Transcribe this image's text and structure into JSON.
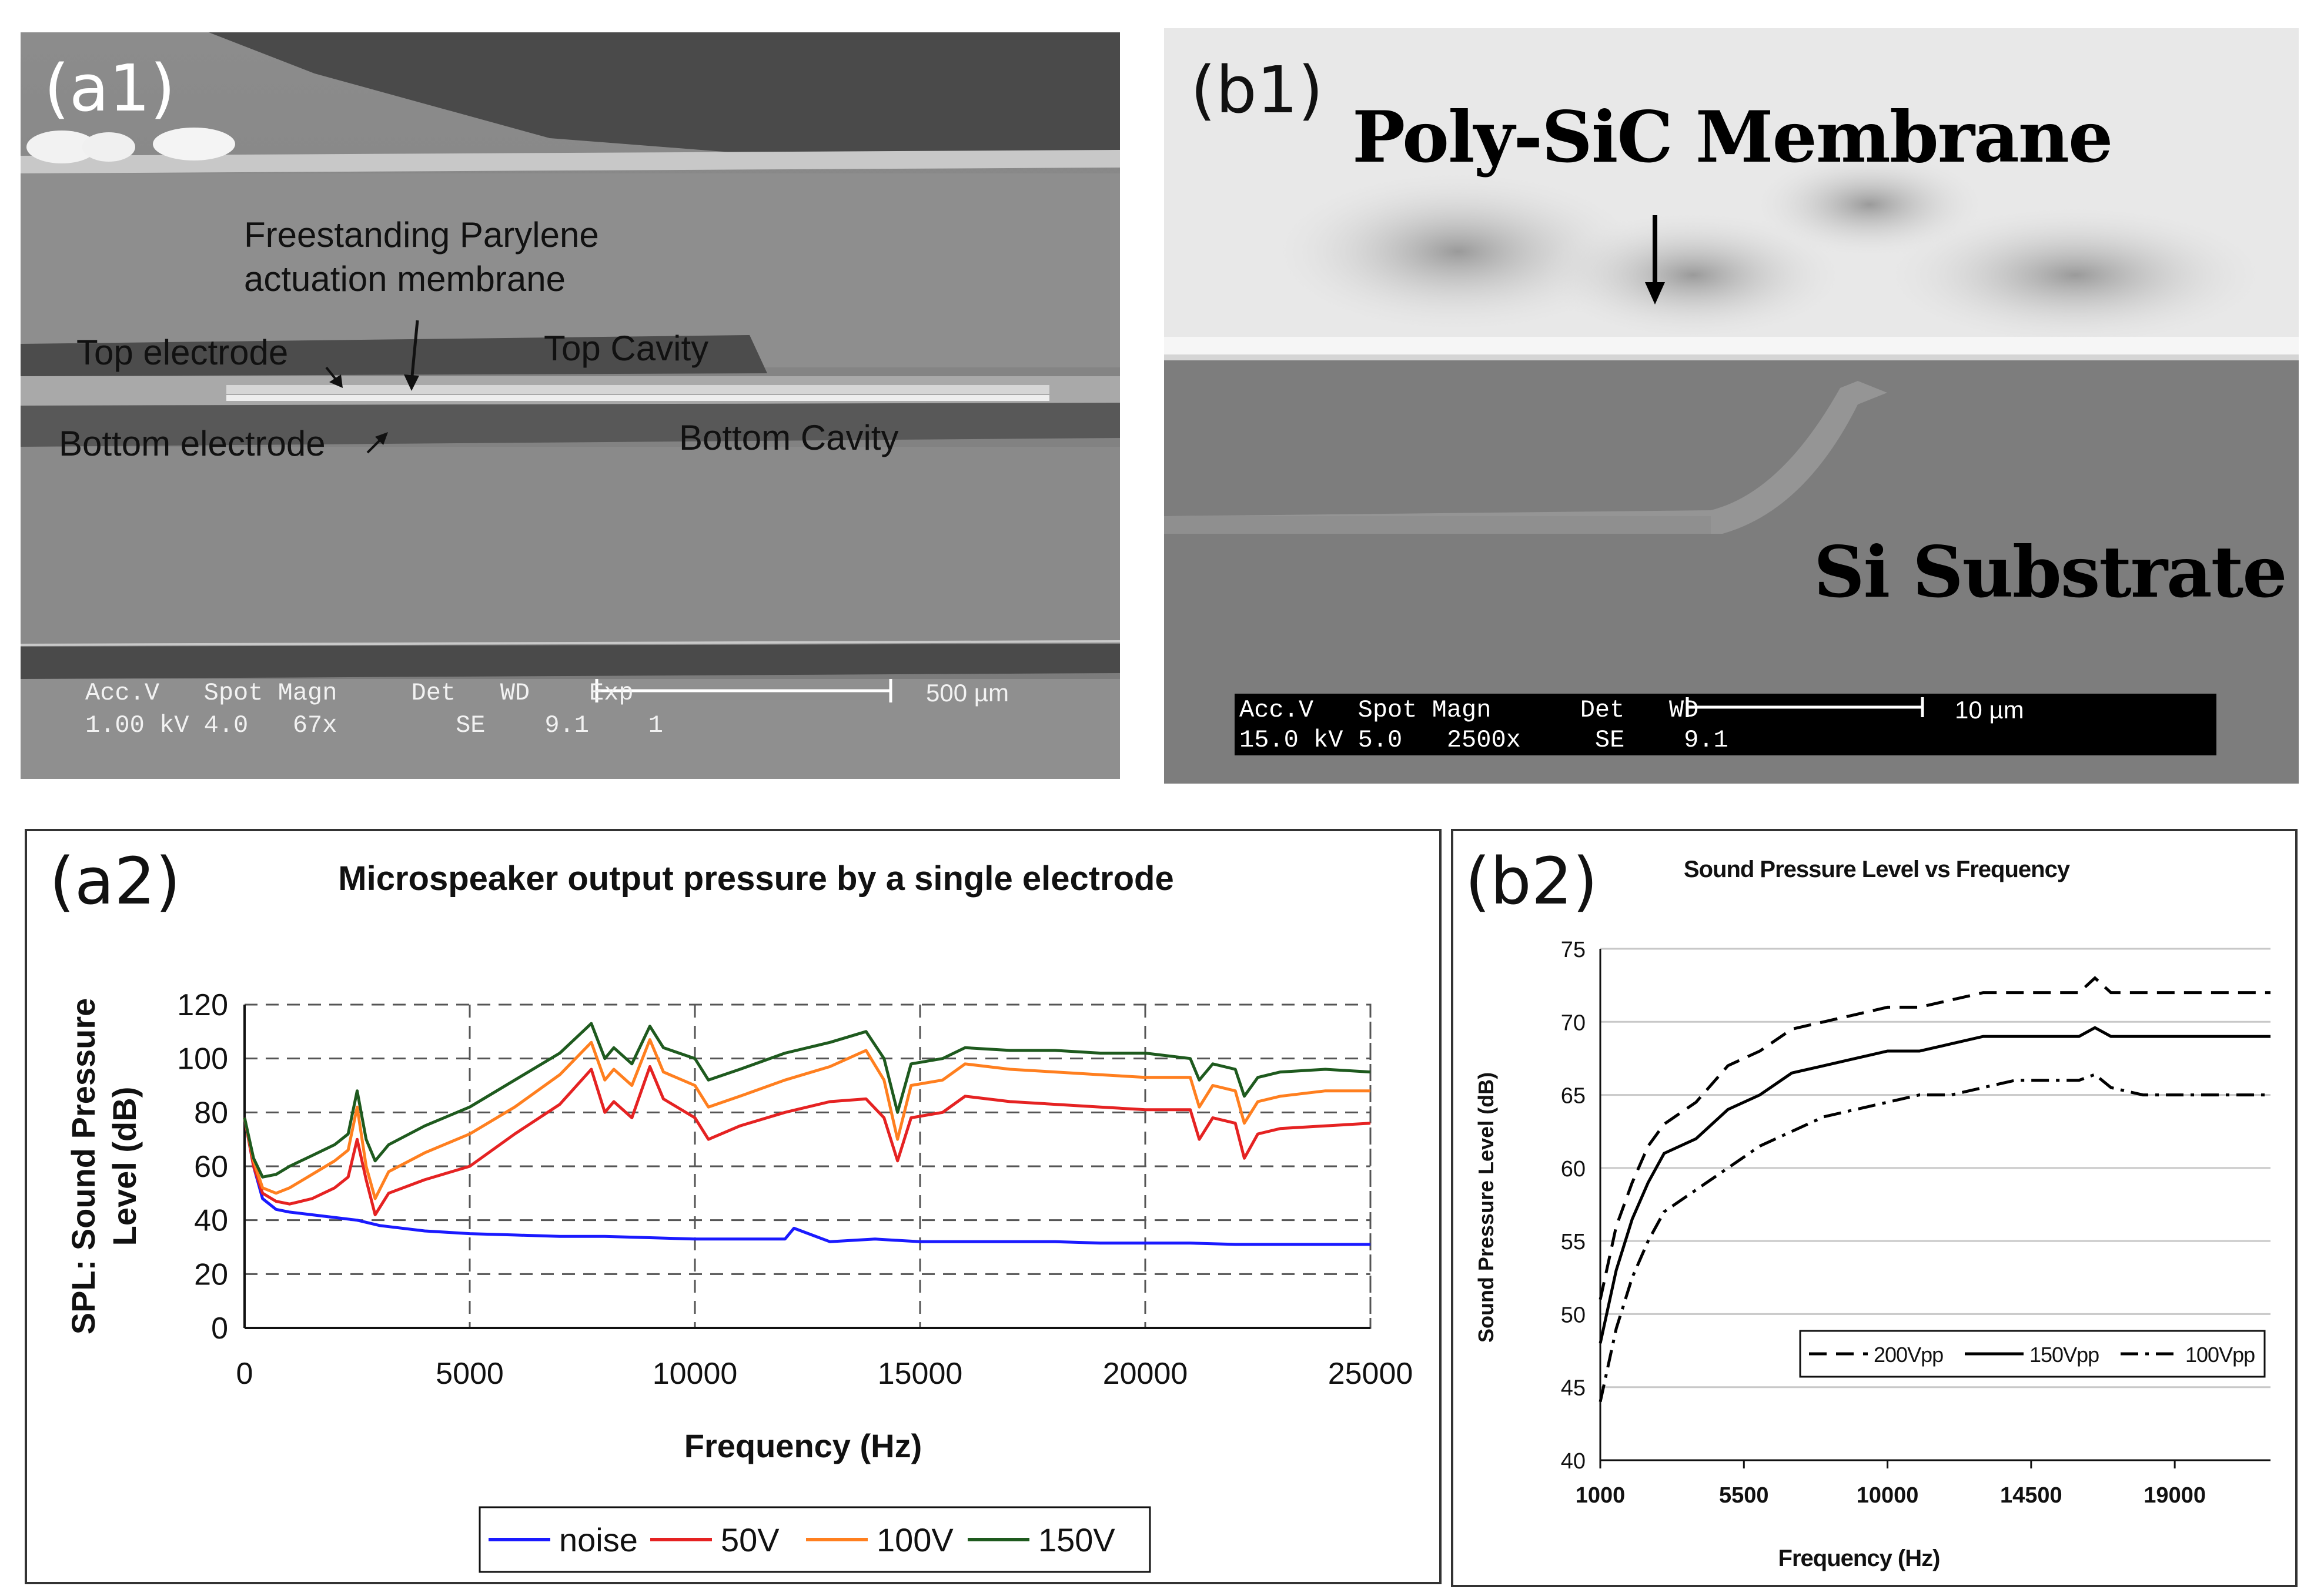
{
  "colors": {
    "sem_light": "#8a8a8a",
    "sem_dark": "#4f4f4f",
    "noise": "#1a1aff",
    "v50": "#e52222",
    "v100": "#ff7f1f",
    "v150": "#1e5a1e",
    "grid": "#555555"
  },
  "panel_a1": {
    "label": "(a1)",
    "annot_freestanding": "Freestanding Parylene",
    "annot_actuation": "actuation membrane",
    "annot_top_electrode": "Top electrode",
    "annot_top_cavity": "Top Cavity",
    "annot_bottom_electrode": "Bottom electrode",
    "annot_bottom_cavity": "Bottom Cavity",
    "databar_header": "Acc.V   Spot Magn     Det   WD    Exp",
    "databar_values": "1.00 kV 4.0   67x        SE    9.1    1",
    "scale_label": "500 µm"
  },
  "panel_b1": {
    "label": "(b1)",
    "title": "Poly-SiC Membrane",
    "substrate": "Si Substrate",
    "databar_header": "Acc.V   Spot Magn      Det   WD",
    "databar_values": "15.0 kV 5.0   2500x     SE    9.1",
    "scale_label": "10 µm"
  },
  "chart_data": [
    {
      "panel": "(a2)",
      "type": "line",
      "title": "Microspeaker output pressure by a single electrode",
      "xlabel": "Frequency (Hz)",
      "ylabel_line1": "SPL: Sound Pressure",
      "ylabel_line2": "Level (dB)",
      "xlim": [
        0,
        25000
      ],
      "ylim": [
        0,
        120
      ],
      "xticks": [
        "0",
        "5000",
        "10000",
        "15000",
        "20000",
        "25000"
      ],
      "yticks": [
        "0",
        "20",
        "40",
        "60",
        "80",
        "100",
        "120"
      ],
      "grid": true,
      "legend_position": "bottom",
      "series": [
        {
          "name": "noise",
          "color": "#1a1aff",
          "x": [
            0,
            200,
            400,
            700,
            1000,
            1500,
            2000,
            2500,
            3000,
            4000,
            5000,
            6000,
            7000,
            8000,
            9000,
            10000,
            11000,
            12000,
            12200,
            13000,
            14000,
            15000,
            16000,
            17000,
            18000,
            19000,
            20000,
            21000,
            22000,
            23000,
            24000,
            25000
          ],
          "y": [
            78,
            60,
            48,
            44,
            43,
            42,
            41,
            40,
            38,
            36,
            35,
            34.5,
            34,
            34,
            33.5,
            33,
            33,
            33,
            37,
            32,
            33,
            32,
            32,
            32,
            32,
            31.5,
            31.5,
            31.5,
            31,
            31,
            31,
            31
          ]
        },
        {
          "name": "50V",
          "color": "#e52222",
          "x": [
            0,
            200,
            400,
            700,
            1000,
            1500,
            2000,
            2300,
            2500,
            2700,
            2900,
            3200,
            4000,
            5000,
            6000,
            7000,
            7700,
            8000,
            8200,
            8600,
            9000,
            9300,
            10000,
            10300,
            11000,
            12000,
            13000,
            13800,
            14200,
            14500,
            14800,
            15500,
            16000,
            17000,
            18000,
            19000,
            20000,
            21000,
            21200,
            21500,
            22000,
            22200,
            22500,
            23000,
            24000,
            25000
          ],
          "y": [
            78,
            60,
            50,
            47,
            46,
            48,
            52,
            56,
            70,
            55,
            42,
            50,
            55,
            60,
            72,
            83,
            96,
            80,
            84,
            78,
            97,
            85,
            78,
            70,
            75,
            80,
            84,
            85,
            78,
            62,
            78,
            80,
            86,
            84,
            83,
            82,
            81,
            81,
            70,
            78,
            76,
            63,
            72,
            74,
            75,
            76
          ]
        },
        {
          "name": "100V",
          "color": "#ff7f1f",
          "x": [
            0,
            200,
            400,
            700,
            1000,
            1500,
            2000,
            2300,
            2500,
            2700,
            2900,
            3200,
            4000,
            5000,
            6000,
            7000,
            7700,
            8000,
            8200,
            8600,
            9000,
            9300,
            10000,
            10300,
            11000,
            12000,
            13000,
            13800,
            14200,
            14500,
            14800,
            15500,
            16000,
            17000,
            18000,
            19000,
            20000,
            21000,
            21200,
            21500,
            22000,
            22200,
            22500,
            23000,
            24000,
            25000
          ],
          "y": [
            78,
            62,
            52,
            50,
            52,
            57,
            62,
            66,
            82,
            60,
            48,
            58,
            65,
            72,
            82,
            94,
            106,
            92,
            96,
            90,
            107,
            95,
            90,
            82,
            86,
            92,
            97,
            103,
            92,
            70,
            90,
            92,
            98,
            96,
            95,
            94,
            93,
            93,
            82,
            90,
            88,
            76,
            84,
            86,
            88,
            88
          ]
        },
        {
          "name": "150V",
          "color": "#1e5a1e",
          "x": [
            0,
            200,
            400,
            700,
            1000,
            1500,
            2000,
            2300,
            2500,
            2700,
            2900,
            3200,
            4000,
            5000,
            6000,
            7000,
            7700,
            8000,
            8200,
            8600,
            9000,
            9300,
            10000,
            10300,
            11000,
            12000,
            13000,
            13800,
            14200,
            14500,
            14800,
            15500,
            16000,
            17000,
            18000,
            19000,
            20000,
            21000,
            21200,
            21500,
            22000,
            22200,
            22500,
            23000,
            24000,
            25000
          ],
          "y": [
            78,
            63,
            56,
            57,
            60,
            64,
            68,
            72,
            88,
            70,
            62,
            68,
            75,
            82,
            92,
            102,
            113,
            100,
            104,
            98,
            112,
            104,
            100,
            92,
            96,
            102,
            106,
            110,
            100,
            80,
            98,
            100,
            104,
            103,
            103,
            102,
            102,
            100,
            92,
            98,
            96,
            86,
            93,
            95,
            96,
            95
          ]
        }
      ]
    },
    {
      "panel": "(b2)",
      "type": "line",
      "title": "Sound Pressure Level vs Frequency",
      "xlabel": "Frequency (Hz)",
      "ylabel": "Sound Pressure Level (dB)",
      "xlim": [
        1000,
        22000
      ],
      "ylim": [
        40,
        75
      ],
      "xticks": [
        "1000",
        "5500",
        "10000",
        "14500",
        "19000"
      ],
      "yticks": [
        "40",
        "45",
        "50",
        "55",
        "60",
        "65",
        "70",
        "75"
      ],
      "grid": true,
      "legend_position": "bottom-right",
      "series": [
        {
          "name": "200Vpp",
          "style": "dashed",
          "x": [
            1000,
            1500,
            2000,
            2500,
            3000,
            4000,
            5000,
            6000,
            7000,
            8000,
            9000,
            10000,
            11000,
            12000,
            13000,
            14000,
            15000,
            16000,
            16500,
            17000,
            18000,
            19000,
            20000,
            21000,
            22000
          ],
          "y": [
            51,
            56,
            59,
            61.5,
            63,
            64.5,
            67,
            68,
            69.5,
            70,
            70.5,
            71,
            71,
            71.5,
            72,
            72,
            72,
            72,
            73,
            72,
            72,
            72,
            72,
            72,
            72
          ]
        },
        {
          "name": "150Vpp",
          "style": "solid",
          "x": [
            1000,
            1500,
            2000,
            2500,
            3000,
            4000,
            5000,
            6000,
            7000,
            8000,
            9000,
            10000,
            11000,
            12000,
            13000,
            14000,
            15000,
            16000,
            16500,
            17000,
            18000,
            19000,
            20000,
            21000,
            22000
          ],
          "y": [
            48,
            53,
            56.5,
            59,
            61,
            62,
            64,
            65,
            66.5,
            67,
            67.5,
            68,
            68,
            68.5,
            69,
            69,
            69,
            69,
            69.6,
            69,
            69,
            69,
            69,
            69,
            69
          ]
        },
        {
          "name": "100Vpp",
          "style": "dash-dot",
          "x": [
            1000,
            1500,
            2000,
            2500,
            3000,
            4000,
            5000,
            6000,
            7000,
            8000,
            9000,
            10000,
            11000,
            12000,
            13000,
            14000,
            15000,
            16000,
            16500,
            17000,
            18000,
            19000,
            20000,
            21000,
            22000
          ],
          "y": [
            44,
            49,
            52.5,
            55,
            57,
            58.5,
            60,
            61.5,
            62.5,
            63.5,
            64,
            64.5,
            65,
            65,
            65.5,
            66,
            66,
            66,
            66.4,
            65.5,
            65,
            65,
            65,
            65,
            65
          ]
        }
      ]
    }
  ]
}
